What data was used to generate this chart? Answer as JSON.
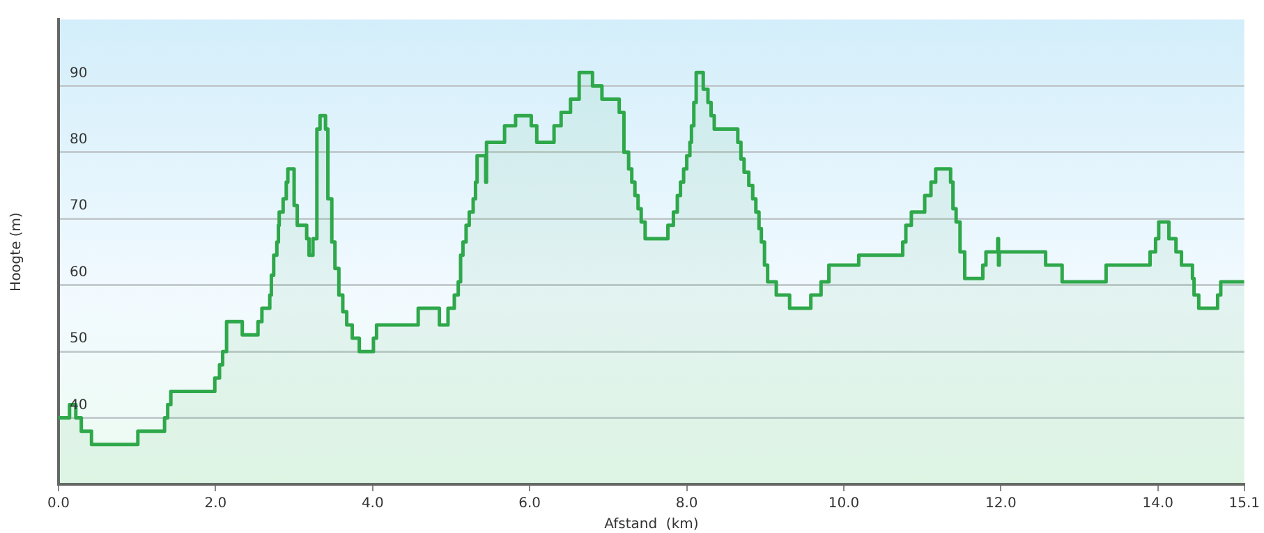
{
  "chart_data": {
    "type": "area",
    "xlabel": "Afstand  (km)",
    "ylabel": "Hoogte (m)",
    "color": "#2ea84a",
    "marker": "none",
    "grid": "y",
    "legend": false,
    "x": [
      0.0,
      0.14,
      0.14,
      0.22,
      0.22,
      0.29,
      0.29,
      0.42,
      0.42,
      1.01,
      1.01,
      1.35,
      1.35,
      1.39,
      1.39,
      1.43,
      1.43,
      1.99,
      1.99,
      2.05,
      2.05,
      2.09,
      2.09,
      2.14,
      2.14,
      2.34,
      2.34,
      2.54,
      2.54,
      2.59,
      2.59,
      2.69,
      2.69,
      2.71,
      2.71,
      2.74,
      2.74,
      2.78,
      2.78,
      2.8,
      2.8,
      2.81,
      2.81,
      2.86,
      2.86,
      2.9,
      2.9,
      2.92,
      2.92,
      3.0,
      3.0,
      3.04,
      3.04,
      3.16,
      3.16,
      3.19,
      3.19,
      3.24,
      3.24,
      3.29,
      3.29,
      3.33,
      3.33,
      3.4,
      3.4,
      3.43,
      3.43,
      3.48,
      3.48,
      3.52,
      3.52,
      3.57,
      3.57,
      3.62,
      3.62,
      3.67,
      3.67,
      3.74,
      3.74,
      3.83,
      3.83,
      4.01,
      4.01,
      4.05,
      4.05,
      4.58,
      4.58,
      4.85,
      4.85,
      4.96,
      4.96,
      5.04,
      5.04,
      5.09,
      5.09,
      5.12,
      5.12,
      5.15,
      5.15,
      5.19,
      5.19,
      5.23,
      5.23,
      5.28,
      5.28,
      5.31,
      5.31,
      5.33,
      5.33,
      5.44,
      5.44,
      5.45,
      5.45,
      5.68,
      5.68,
      5.82,
      5.82,
      6.02,
      6.02,
      6.09,
      6.09,
      6.31,
      6.31,
      6.4,
      6.4,
      6.52,
      6.52,
      6.63,
      6.63,
      6.8,
      6.8,
      6.92,
      6.92,
      7.14,
      7.14,
      7.2,
      7.2,
      7.26,
      7.26,
      7.3,
      7.3,
      7.34,
      7.34,
      7.38,
      7.38,
      7.42,
      7.42,
      7.47,
      7.47,
      7.76,
      7.76,
      7.83,
      7.83,
      7.88,
      7.88,
      7.92,
      7.92,
      7.96,
      7.96,
      8.0,
      8.0,
      8.04,
      8.04,
      8.06,
      8.06,
      8.09,
      8.09,
      8.12,
      8.12,
      8.21,
      8.21,
      8.27,
      8.27,
      8.31,
      8.31,
      8.35,
      8.35,
      8.65,
      8.65,
      8.69,
      8.69,
      8.73,
      8.73,
      8.79,
      8.79,
      8.84,
      8.84,
      8.88,
      8.88,
      8.92,
      8.92,
      8.95,
      8.95,
      8.99,
      8.99,
      9.03,
      9.03,
      9.14,
      9.14,
      9.31,
      9.31,
      9.58,
      9.58,
      9.71,
      9.71,
      9.81,
      9.81,
      10.19,
      10.19,
      10.75,
      10.75,
      10.79,
      10.79,
      10.86,
      10.86,
      11.03,
      11.03,
      11.11,
      11.11,
      11.17,
      11.17,
      11.36,
      11.36,
      11.39,
      11.39,
      11.43,
      11.43,
      11.48,
      11.48,
      11.54,
      11.54,
      11.77,
      11.77,
      11.81,
      11.81,
      11.96,
      11.96,
      11.97,
      11.97,
      11.98,
      11.98,
      12.57,
      12.57,
      12.78,
      12.78,
      13.34,
      13.34,
      13.9,
      13.9,
      13.97,
      13.97,
      14.01,
      14.01,
      14.14,
      14.14,
      14.23,
      14.23,
      14.3,
      14.3,
      14.44,
      14.44,
      14.46,
      14.46,
      14.52,
      14.52,
      14.76,
      14.76,
      14.8,
      14.8,
      15.1
    ],
    "values": [
      40,
      40,
      42,
      42,
      40,
      40,
      38,
      38,
      36,
      36,
      38,
      38,
      40,
      40,
      42,
      42,
      44,
      44,
      46,
      46,
      48,
      48,
      50,
      50,
      54.5,
      54.5,
      52.5,
      52.5,
      54.5,
      54.5,
      56.5,
      56.5,
      58.5,
      58.5,
      61.5,
      61.5,
      64.5,
      64.5,
      66.5,
      66.5,
      69,
      69,
      71,
      71,
      73,
      73,
      75.5,
      75.5,
      77.5,
      77.5,
      72,
      72,
      69,
      69,
      67,
      67,
      64.5,
      64.5,
      67,
      67,
      83.5,
      83.5,
      85.5,
      85.5,
      83.5,
      83.5,
      73,
      73,
      66.5,
      66.5,
      62.5,
      62.5,
      58.5,
      58.5,
      56,
      56,
      54,
      54,
      52,
      52,
      50,
      50,
      52,
      52,
      54,
      54,
      56.5,
      56.5,
      54,
      54,
      56.5,
      56.5,
      58.5,
      58.5,
      60.5,
      60.5,
      64.5,
      64.5,
      66.5,
      66.5,
      69,
      69,
      71,
      71,
      73,
      73,
      75.5,
      75.5,
      79.5,
      79.5,
      75.5,
      75.5,
      81.5,
      81.5,
      84,
      84,
      85.5,
      85.5,
      84,
      84,
      81.5,
      81.5,
      84,
      84,
      86,
      86,
      88,
      88,
      92,
      92,
      90,
      90,
      88,
      88,
      86,
      86,
      80,
      80,
      77.5,
      77.5,
      75.5,
      75.5,
      73.5,
      73.5,
      71.5,
      71.5,
      69.5,
      69.5,
      67,
      67,
      69,
      69,
      71,
      71,
      73.5,
      73.5,
      75.5,
      75.5,
      77.5,
      77.5,
      79.5,
      79.5,
      81.5,
      81.5,
      84,
      84,
      87.5,
      87.5,
      92,
      92,
      89.5,
      89.5,
      87.5,
      87.5,
      85.5,
      85.5,
      83.5,
      83.5,
      81.5,
      81.5,
      79,
      79,
      77,
      77,
      75,
      75,
      73,
      73,
      71,
      71,
      68.5,
      68.5,
      66.5,
      66.5,
      63,
      63,
      60.5,
      60.5,
      58.5,
      58.5,
      56.5,
      56.5,
      58.5,
      58.5,
      60.5,
      60.5,
      63,
      63,
      64.5,
      64.5,
      66.5,
      66.5,
      69,
      69,
      71,
      71,
      73.5,
      73.5,
      75.5,
      75.5,
      77.5,
      77.5,
      75.5,
      75.5,
      71.5,
      71.5,
      69.5,
      69.5,
      65,
      65,
      61,
      61,
      63,
      63,
      65,
      65,
      67,
      67,
      63,
      63,
      65,
      65,
      63,
      63,
      60.5,
      60.5,
      63,
      63,
      65,
      65,
      67,
      67,
      69.5,
      69.5,
      67,
      67,
      65,
      65,
      63,
      63,
      61,
      61,
      58.5,
      58.5,
      56.5,
      56.5,
      58.5,
      58.5,
      60.5,
      60.5
    ],
    "xlim": [
      0,
      15.1
    ],
    "xticks": [
      {
        "value": 0,
        "label": "0.0"
      },
      {
        "value": 2,
        "label": "2.0"
      },
      {
        "value": 4,
        "label": "4.0"
      },
      {
        "value": 6,
        "label": "6.0"
      },
      {
        "value": 8,
        "label": "8.0"
      },
      {
        "value": 10,
        "label": "10.0"
      },
      {
        "value": 12,
        "label": "12.0"
      },
      {
        "value": 14,
        "label": "14.0"
      },
      {
        "value": 15.1,
        "label": "15.1"
      }
    ],
    "ylim": [
      30,
      100
    ],
    "yticks": [
      40,
      50,
      60,
      70,
      80,
      90
    ]
  }
}
